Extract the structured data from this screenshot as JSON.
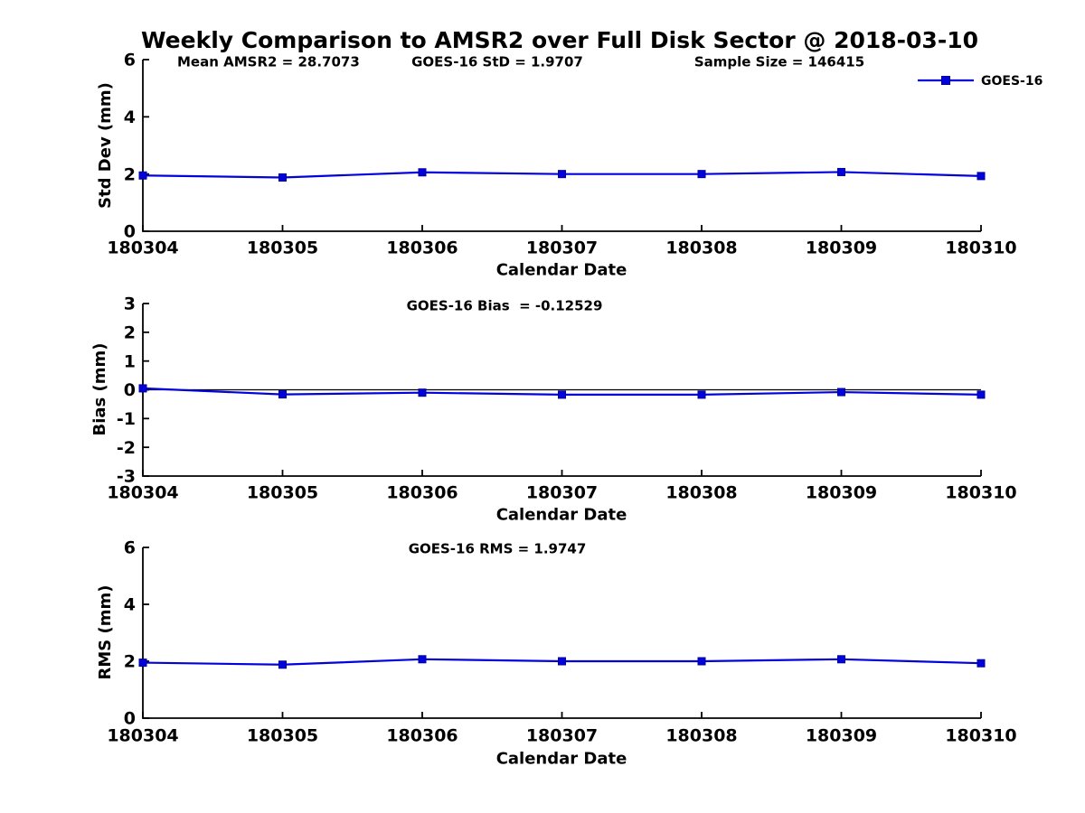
{
  "title": "Weekly Comparison to AMSR2 over Full Disk Sector @ 2018-03-10",
  "legend": {
    "label": "GOES-16"
  },
  "colors": {
    "series": "#0202dd",
    "marker_fill": "#0202dd",
    "marker_edge": "#000099",
    "axis": "#000000",
    "zero_line": "#000000"
  },
  "chart_data": [
    {
      "type": "line",
      "id": "std-dev",
      "annotations": [
        "Mean AMSR2 = 28.7073",
        "GOES-16 StD = 1.9707",
        "Sample Size = 146415"
      ],
      "categories": [
        "180304",
        "180305",
        "180306",
        "180307",
        "180308",
        "180309",
        "180310"
      ],
      "series": [
        {
          "name": "GOES-16",
          "values": [
            1.95,
            1.88,
            2.06,
            2.0,
            2.0,
            2.07,
            1.93
          ]
        }
      ],
      "ylabel": "Std Dev (mm)",
      "xlabel": "Calendar Date",
      "yticks": [
        0,
        2,
        4,
        6
      ],
      "ylim": [
        0,
        6
      ],
      "zero_line": false,
      "legend_position": "top-right",
      "grid": false
    },
    {
      "type": "line",
      "id": "bias",
      "annotations": [
        "GOES-16 Bias  = -0.12529"
      ],
      "categories": [
        "180304",
        "180305",
        "180306",
        "180307",
        "180308",
        "180309",
        "180310"
      ],
      "series": [
        {
          "name": "GOES-16",
          "values": [
            0.05,
            -0.16,
            -0.1,
            -0.17,
            -0.17,
            -0.08,
            -0.17
          ]
        }
      ],
      "ylabel": "Bias (mm)",
      "xlabel": "Calendar Date",
      "yticks": [
        3,
        2,
        1,
        0,
        -1,
        -2,
        -3
      ],
      "ylim": [
        -3,
        3
      ],
      "zero_line": true,
      "grid": false
    },
    {
      "type": "line",
      "id": "rms",
      "annotations": [
        "GOES-16 RMS = 1.9747"
      ],
      "categories": [
        "180304",
        "180305",
        "180306",
        "180307",
        "180308",
        "180309",
        "180310"
      ],
      "series": [
        {
          "name": "GOES-16",
          "values": [
            1.95,
            1.88,
            2.07,
            2.0,
            2.0,
            2.07,
            1.93
          ]
        }
      ],
      "ylabel": "RMS (mm)",
      "xlabel": "Calendar Date",
      "yticks": [
        0,
        2,
        4,
        6
      ],
      "ylim": [
        0,
        6
      ],
      "zero_line": false,
      "grid": false
    }
  ]
}
